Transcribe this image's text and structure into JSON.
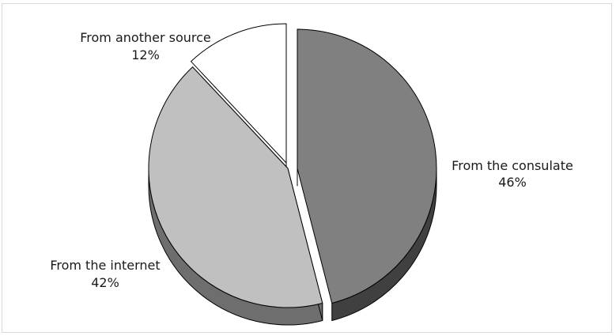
{
  "chart_data": {
    "type": "pie",
    "style": "3d-exploded",
    "title": "",
    "categories": [
      "From the consulate",
      "From the internet",
      "From another source"
    ],
    "values": [
      46,
      42,
      12
    ],
    "value_labels": [
      "46%",
      "42%",
      "12%"
    ],
    "colors": {
      "From the consulate": {
        "top": "#808080",
        "side": "#404040"
      },
      "From the internet": {
        "top": "#c0c0c0",
        "side": "#6e6e6e"
      },
      "From another source": {
        "top": "#ffffff",
        "side": "#9a9a9a"
      }
    },
    "legend": "none",
    "grid": false
  }
}
